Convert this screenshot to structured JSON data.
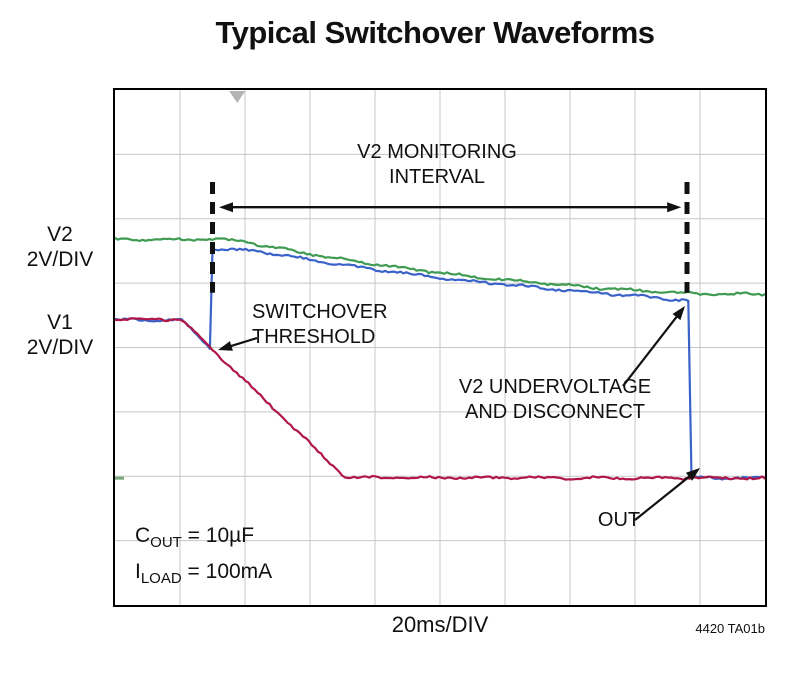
{
  "title": "Typical Switchover Waveforms",
  "axis": {
    "x_label": "20ms/DIV",
    "left_labels": [
      {
        "name": "V2",
        "scale": "2V/DIV"
      },
      {
        "name": "V1",
        "scale": "2V/DIV"
      }
    ],
    "credit": "4420 TA01b"
  },
  "annotations": {
    "monitoring": "V2 MONITORING\nINTERVAL",
    "switchover": "SWITCHOVER\nTHRESHOLD",
    "undervoltage": "V2 UNDERVOLTAGE\nAND DISCONNECT",
    "out": "OUT"
  },
  "notes": [
    {
      "base": "C",
      "sub": "OUT",
      "rest": " = 10µF"
    },
    {
      "base": "I",
      "sub": "LOAD",
      "rest": " = 100mA"
    }
  ],
  "chart_data": {
    "type": "line",
    "title": "Typical Switchover Waveforms",
    "x_scale": "20ms/DIV",
    "y_scale": "2V/DIV",
    "x_divs": 10,
    "y_divs": 8,
    "grid": true,
    "colors": {
      "v2": "#3f9b52",
      "out": "#3a62c8",
      "v1": "#b01747",
      "grid": "#c7c7c7",
      "ink": "#111111"
    },
    "series": [
      {
        "name": "V2",
        "color": "#3f9b52",
        "points_div": [
          [
            0,
            5.68
          ],
          [
            1.5,
            5.68
          ],
          [
            1.9,
            5.66
          ],
          [
            3,
            5.45
          ],
          [
            4.5,
            5.22
          ],
          [
            6,
            5.05
          ],
          [
            7.5,
            4.92
          ],
          [
            8.6,
            4.85
          ],
          [
            9,
            4.83
          ],
          [
            10,
            4.83
          ]
        ]
      },
      {
        "name": "OUT",
        "color": "#3a62c8",
        "points_div": [
          [
            0,
            4.43
          ],
          [
            1.02,
            4.43
          ],
          [
            1.46,
            3.99
          ],
          [
            1.5,
            5.53
          ],
          [
            2.2,
            5.5
          ],
          [
            3.5,
            5.28
          ],
          [
            5,
            5.08
          ],
          [
            6.5,
            4.93
          ],
          [
            8,
            4.8
          ],
          [
            8.82,
            4.73
          ],
          [
            8.87,
            1.98
          ],
          [
            10,
            1.97
          ]
        ]
      },
      {
        "name": "V1",
        "color": "#b01747",
        "points_div": [
          [
            0,
            4.44
          ],
          [
            1.0,
            4.44
          ],
          [
            1.08,
            4.38
          ],
          [
            3.54,
            1.98
          ],
          [
            10,
            1.97
          ]
        ]
      }
    ],
    "markers": {
      "dashed_x_div": [
        1.5,
        8.8
      ],
      "dashed_y_span_div": [
        4.85,
        6.57
      ],
      "interval_arrow_x_div": [
        1.6,
        8.71
      ],
      "interval_arrow_y_div": 6.18,
      "trigger_x_div": 1.88,
      "ground_y_div": 1.97
    },
    "annotation_arrows": [
      {
        "name": "switchover-threshold-arrow",
        "from": [
          142,
          248
        ],
        "to": [
          103,
          260
        ]
      },
      {
        "name": "v2-undervoltage-arrow",
        "from": [
          508,
          296
        ],
        "to": [
          570,
          216
        ]
      },
      {
        "name": "out-arrow",
        "from": [
          520,
          430
        ],
        "to": [
          585,
          378
        ]
      }
    ]
  }
}
